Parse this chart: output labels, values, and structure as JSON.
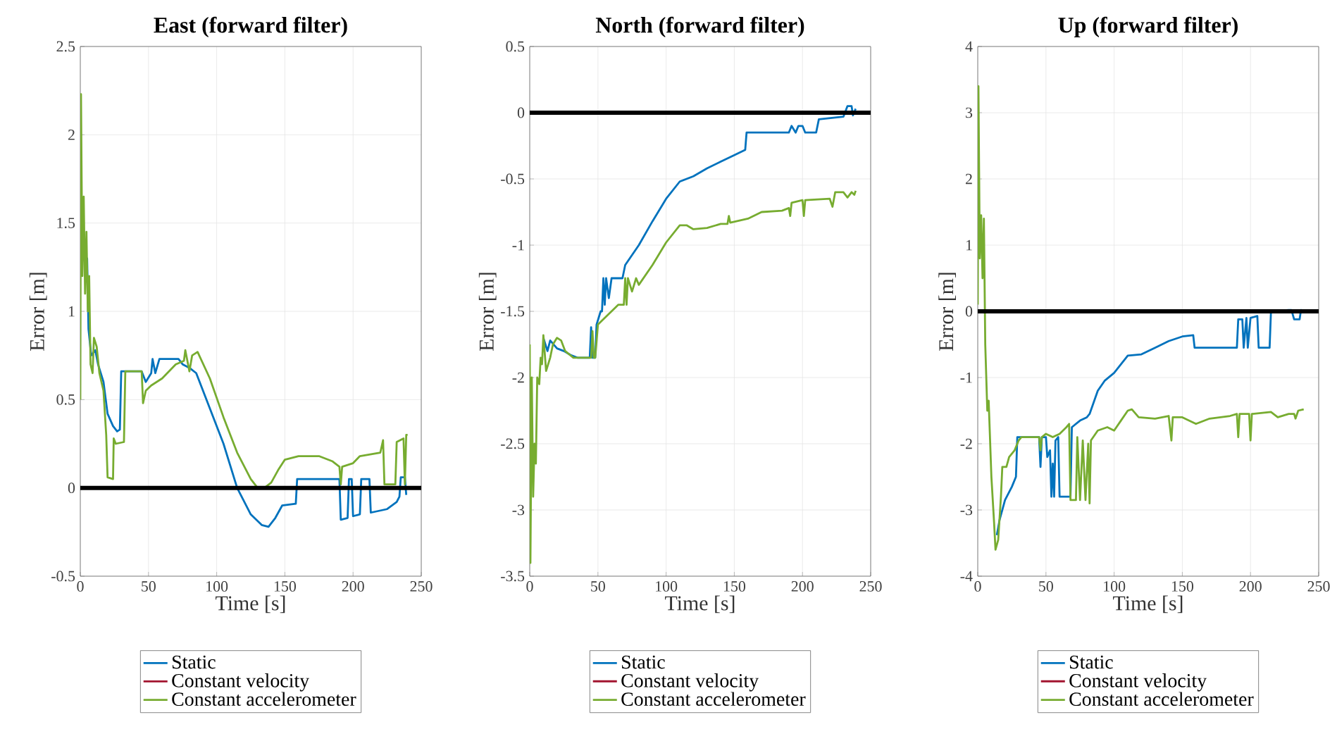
{
  "chart_data": [
    {
      "type": "line",
      "title": "East (forward filter)",
      "xlabel": "Time [s]",
      "ylabel": "Error [m]",
      "xlim": [
        0,
        250
      ],
      "ylim": [
        -0.5,
        2.5
      ],
      "xticks": [
        0,
        50,
        100,
        150,
        200,
        250
      ],
      "yticks": [
        -0.5,
        0,
        0.5,
        1,
        1.5,
        2,
        2.5
      ],
      "grid": true,
      "legend": "bottom",
      "ref_lines": [
        {
          "axis": "y",
          "value": 0,
          "color": "#000000"
        }
      ],
      "series": [
        {
          "name": "Static",
          "color": "#0072bd",
          "x": [
            3,
            5,
            6,
            8,
            11,
            13,
            17,
            20,
            24,
            27,
            29,
            30,
            45,
            48,
            52,
            53,
            55,
            58,
            72,
            75,
            80,
            85,
            95,
            105,
            115,
            125,
            133,
            138,
            143,
            148,
            158,
            159,
            190,
            191,
            196,
            197,
            199,
            200,
            205,
            206,
            212,
            213,
            225,
            232,
            234,
            235,
            238,
            239
          ],
          "values": [
            1.28,
            1.3,
            0.9,
            0.75,
            0.78,
            0.7,
            0.6,
            0.42,
            0.35,
            0.32,
            0.33,
            0.66,
            0.66,
            0.6,
            0.65,
            0.73,
            0.65,
            0.73,
            0.73,
            0.7,
            0.68,
            0.65,
            0.45,
            0.25,
            0.0,
            -0.15,
            -0.21,
            -0.22,
            -0.17,
            -0.1,
            -0.09,
            0.05,
            0.05,
            -0.18,
            -0.17,
            0.05,
            0.05,
            -0.16,
            -0.15,
            0.05,
            0.05,
            -0.14,
            -0.12,
            -0.08,
            -0.05,
            0.06,
            0.06,
            -0.04
          ]
        },
        {
          "name": "Constant velocity",
          "color": "#a2142f"
        },
        {
          "name": "Constant accelerometer",
          "color": "#77ac30",
          "x": [
            0,
            0.5,
            1.5,
            2.5,
            3.5,
            4.5,
            5.5,
            6.5,
            7.5,
            9,
            10,
            12,
            14,
            17,
            19,
            20,
            24,
            24.5,
            26,
            32,
            33,
            45,
            46,
            48,
            52,
            60,
            70,
            76,
            77,
            80,
            82,
            86,
            95,
            105,
            115,
            125,
            130,
            135,
            140,
            145,
            150,
            160,
            175,
            185,
            190,
            191,
            192,
            200,
            205,
            220,
            222,
            223,
            231,
            232,
            237,
            238,
            239,
            240
          ],
          "values": [
            0.5,
            2.23,
            1.2,
            1.65,
            1.1,
            1.45,
            1.0,
            1.2,
            0.7,
            0.65,
            0.85,
            0.8,
            0.65,
            0.55,
            0.3,
            0.06,
            0.05,
            0.28,
            0.25,
            0.26,
            0.66,
            0.66,
            0.48,
            0.55,
            0.58,
            0.62,
            0.7,
            0.72,
            0.78,
            0.66,
            0.75,
            0.77,
            0.62,
            0.4,
            0.2,
            0.05,
            0.0,
            0.0,
            0.03,
            0.1,
            0.16,
            0.18,
            0.18,
            0.15,
            0.12,
            0.02,
            0.12,
            0.14,
            0.18,
            0.2,
            0.27,
            0.02,
            0.02,
            0.26,
            0.28,
            0.02,
            0.3,
            0.3
          ]
        }
      ]
    },
    {
      "type": "line",
      "title": "North (forward filter)",
      "xlabel": "Time [s]",
      "ylabel": "Error [m]",
      "xlim": [
        0,
        250
      ],
      "ylim": [
        -3.5,
        0.5
      ],
      "xticks": [
        0,
        50,
        100,
        150,
        200,
        250
      ],
      "yticks": [
        -3.5,
        -3,
        -2.5,
        -2,
        -1.5,
        -1,
        -0.5,
        0,
        0.5
      ],
      "grid": true,
      "legend": "bottom",
      "ref_lines": [
        {
          "axis": "y",
          "value": 0,
          "color": "#000000"
        }
      ],
      "series": [
        {
          "name": "Static",
          "color": "#0072bd",
          "x": [
            10,
            13,
            15,
            20,
            25,
            30,
            35,
            44,
            45,
            46,
            48,
            49,
            52,
            53,
            54,
            55,
            56,
            58,
            60,
            68,
            70,
            80,
            90,
            100,
            110,
            120,
            130,
            140,
            150,
            158,
            159,
            190,
            192,
            195,
            197,
            200,
            202,
            210,
            212,
            230,
            233,
            236,
            237,
            239
          ],
          "values": [
            -1.7,
            -1.8,
            -1.72,
            -1.78,
            -1.8,
            -1.83,
            -1.85,
            -1.85,
            -1.62,
            -1.85,
            -1.85,
            -1.6,
            -1.5,
            -1.5,
            -1.25,
            -1.45,
            -1.25,
            -1.4,
            -1.25,
            -1.25,
            -1.15,
            -1.0,
            -0.82,
            -0.65,
            -0.52,
            -0.48,
            -0.42,
            -0.37,
            -0.32,
            -0.28,
            -0.15,
            -0.15,
            -0.1,
            -0.15,
            -0.1,
            -0.1,
            -0.15,
            -0.15,
            -0.05,
            -0.03,
            0.05,
            0.05,
            -0.02,
            0.03
          ]
        },
        {
          "name": "Constant velocity",
          "color": "#a2142f"
        },
        {
          "name": "Constant accelerometer",
          "color": "#77ac30",
          "x": [
            0,
            0.5,
            1.5,
            2.5,
            3.5,
            4.5,
            5.5,
            7,
            8,
            9,
            10,
            12,
            15,
            17,
            20,
            23,
            26,
            32,
            45,
            46,
            47,
            48,
            50,
            55,
            65,
            69,
            70,
            71,
            72,
            75,
            78,
            80,
            90,
            100,
            110,
            115,
            120,
            130,
            140,
            145,
            146,
            147,
            160,
            170,
            185,
            190,
            191,
            192,
            200,
            201,
            202,
            220,
            222,
            224,
            230,
            233,
            236,
            238,
            239
          ],
          "values": [
            -1.75,
            -3.4,
            -2.0,
            -2.9,
            -2.5,
            -2.65,
            -2.0,
            -2.05,
            -1.85,
            -1.9,
            -1.68,
            -1.95,
            -1.85,
            -1.75,
            -1.7,
            -1.72,
            -1.8,
            -1.85,
            -1.85,
            -1.65,
            -1.85,
            -1.85,
            -1.6,
            -1.55,
            -1.45,
            -1.45,
            -1.25,
            -1.45,
            -1.25,
            -1.35,
            -1.25,
            -1.3,
            -1.15,
            -0.98,
            -0.85,
            -0.85,
            -0.88,
            -0.87,
            -0.84,
            -0.84,
            -0.78,
            -0.83,
            -0.8,
            -0.75,
            -0.74,
            -0.72,
            -0.78,
            -0.68,
            -0.66,
            -0.78,
            -0.66,
            -0.65,
            -0.71,
            -0.6,
            -0.6,
            -0.64,
            -0.6,
            -0.62,
            -0.59
          ]
        }
      ]
    },
    {
      "type": "line",
      "title": "Up (forward filter)",
      "xlabel": "Time [s]",
      "ylabel": "Error [m]",
      "xlim": [
        0,
        250
      ],
      "ylim": [
        -4,
        4
      ],
      "xticks": [
        0,
        50,
        100,
        150,
        200,
        250
      ],
      "yticks": [
        -4,
        -3,
        -2,
        -1,
        0,
        1,
        2,
        3,
        4
      ],
      "grid": true,
      "legend": "bottom",
      "ref_lines": [
        {
          "axis": "y",
          "value": 0,
          "color": "#000000"
        }
      ],
      "series": [
        {
          "name": "Static",
          "color": "#0072bd",
          "x": [
            14,
            16,
            20,
            25,
            28,
            29,
            45,
            46,
            47,
            50,
            51,
            53,
            54,
            55,
            56,
            57,
            59,
            60,
            68,
            69,
            75,
            80,
            82,
            88,
            93,
            100,
            105,
            110,
            120,
            130,
            140,
            150,
            158,
            159,
            190,
            191,
            194,
            195,
            197,
            198,
            200,
            205,
            206,
            214,
            215,
            228,
            230,
            232,
            236,
            237,
            239
          ],
          "values": [
            -3.38,
            -3.15,
            -2.85,
            -2.65,
            -2.5,
            -1.9,
            -1.9,
            -2.35,
            -1.9,
            -1.9,
            -2.2,
            -2.1,
            -2.8,
            -2.3,
            -2.8,
            -1.95,
            -1.9,
            -2.8,
            -2.8,
            -1.75,
            -1.65,
            -1.6,
            -1.55,
            -1.2,
            -1.05,
            -0.93,
            -0.8,
            -0.67,
            -0.65,
            -0.55,
            -0.45,
            -0.38,
            -0.36,
            -0.55,
            -0.55,
            -0.12,
            -0.12,
            -0.55,
            -0.1,
            -0.55,
            -0.1,
            -0.07,
            -0.55,
            -0.55,
            0.0,
            0.02,
            0.02,
            -0.12,
            -0.12,
            0.02,
            0.0
          ]
        },
        {
          "name": "Constant velocity",
          "color": "#a2142f"
        },
        {
          "name": "Constant accelerometer",
          "color": "#77ac30",
          "x": [
            0,
            0.5,
            1.5,
            2.5,
            3.5,
            4.5,
            5.5,
            7,
            8,
            10,
            12,
            13,
            15,
            17,
            18,
            21,
            23,
            27,
            30,
            32,
            45,
            46,
            47,
            50,
            55,
            60,
            65,
            67,
            68,
            72,
            73,
            75,
            77,
            79,
            81,
            82,
            83,
            88,
            95,
            100,
            105,
            110,
            113,
            118,
            130,
            140,
            142,
            143,
            150,
            160,
            170,
            185,
            190,
            191,
            192,
            199,
            200,
            201,
            215,
            220,
            228,
            232,
            233,
            235,
            239
          ],
          "values": [
            0.1,
            3.4,
            0.8,
            1.45,
            0.5,
            1.4,
            -0.5,
            -1.5,
            -1.35,
            -2.5,
            -3.2,
            -3.6,
            -3.45,
            -2.8,
            -2.35,
            -2.35,
            -2.2,
            -2.1,
            -1.95,
            -1.9,
            -1.9,
            -2.1,
            -1.9,
            -1.85,
            -1.9,
            -1.85,
            -1.75,
            -1.7,
            -2.85,
            -2.85,
            -1.9,
            -2.85,
            -1.95,
            -2.85,
            -2.0,
            -2.9,
            -1.95,
            -1.8,
            -1.75,
            -1.8,
            -1.65,
            -1.5,
            -1.48,
            -1.6,
            -1.62,
            -1.58,
            -1.95,
            -1.6,
            -1.6,
            -1.7,
            -1.62,
            -1.58,
            -1.55,
            -1.9,
            -1.55,
            -1.55,
            -1.95,
            -1.55,
            -1.52,
            -1.6,
            -1.55,
            -1.55,
            -1.62,
            -1.5,
            -1.48
          ]
        }
      ]
    }
  ]
}
